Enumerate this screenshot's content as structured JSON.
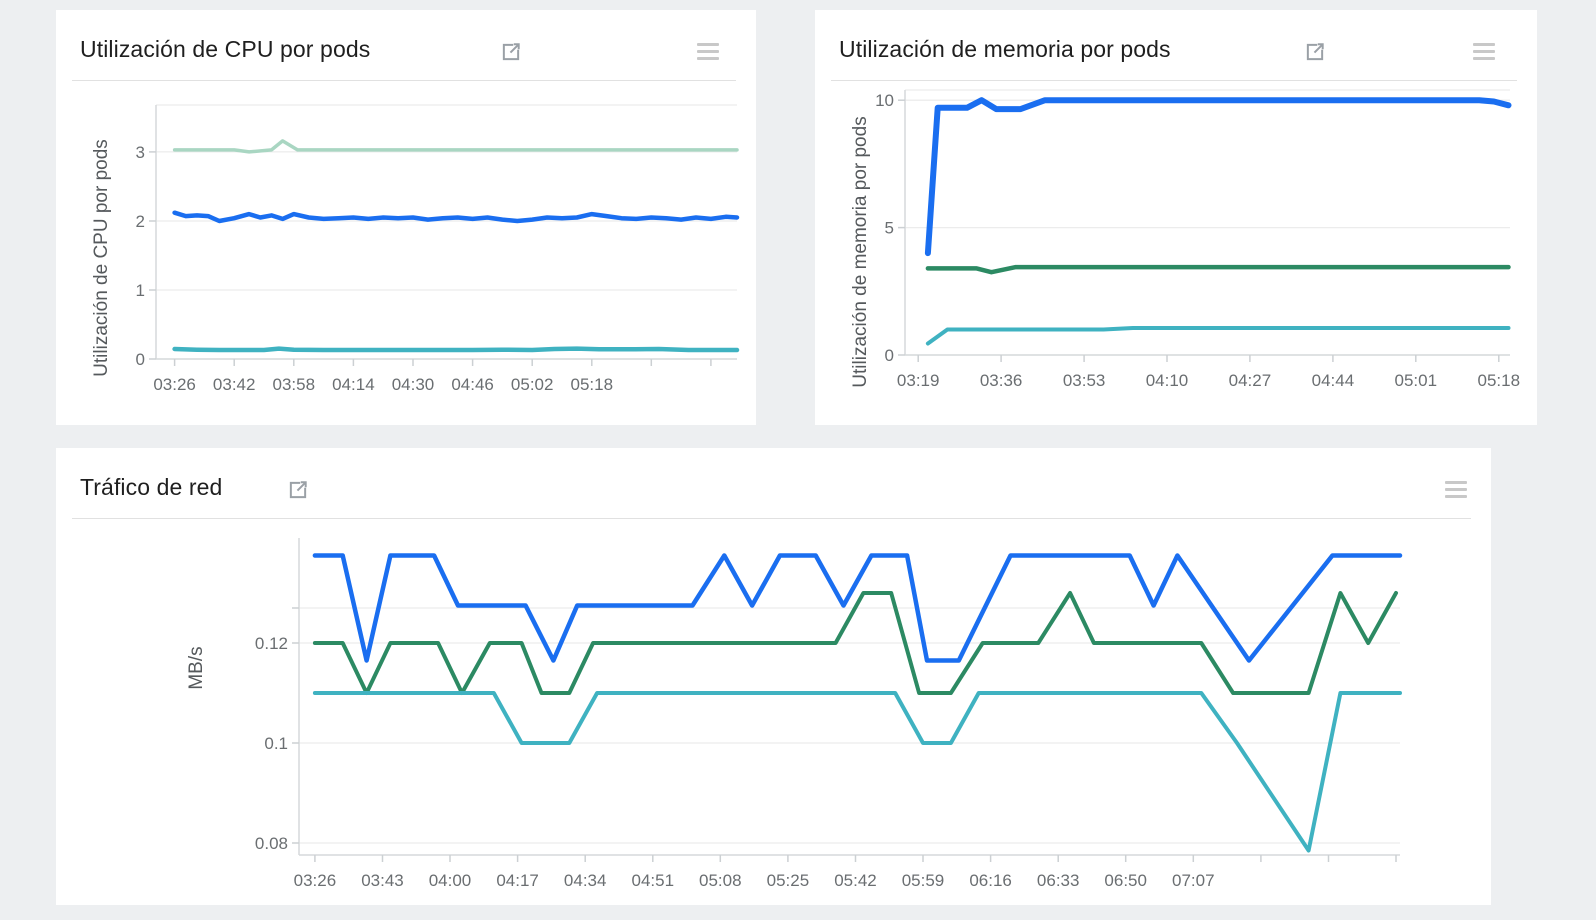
{
  "page": {
    "background_color": "#edeff1",
    "card_color": "#ffffff"
  },
  "icons": {
    "title_action": "open-in-new",
    "card_menu": "menu"
  },
  "colors": {
    "blue": "#1a6ef0",
    "green": "#2c8a63",
    "teal": "#3fb2c1",
    "pale_green": "#a9d6c2",
    "gridline": "#ececec",
    "axis": "#d6d9db",
    "tick": "#ccd0d3"
  },
  "chart_data": [
    {
      "id": "cpu",
      "type": "line",
      "title": "Utilización de CPU por pods",
      "ylabel": "Utilización de CPU por pods",
      "legend": "none",
      "grid": true,
      "x_domain": [
        -5,
        151
      ],
      "y_domain": [
        0,
        3.68
      ],
      "top_gridline": true,
      "y_gridlines_unlabeled": [],
      "x_ticks": [
        {
          "t": 0,
          "label": "03:26"
        },
        {
          "t": 16,
          "label": "03:42"
        },
        {
          "t": 32,
          "label": "03:58"
        },
        {
          "t": 48,
          "label": "04:14"
        },
        {
          "t": 64,
          "label": "04:30"
        },
        {
          "t": 80,
          "label": "04:46"
        },
        {
          "t": 96,
          "label": "05:02"
        },
        {
          "t": 112,
          "label": "05:18"
        }
      ],
      "y_ticks": [
        {
          "v": 0,
          "label": "0"
        },
        {
          "v": 1,
          "label": "1"
        },
        {
          "v": 2,
          "label": "2"
        },
        {
          "v": 3,
          "label": "3"
        }
      ],
      "series": [
        {
          "name": "pale-green-line",
          "color": "#a9d6c2",
          "width": 3.5,
          "points": [
            [
              0,
              3.03
            ],
            [
              16,
              3.03
            ],
            [
              20,
              3.0
            ],
            [
              26,
              3.03
            ],
            [
              29,
              3.16
            ],
            [
              33,
              3.03
            ],
            [
              60,
              3.03
            ],
            [
              100,
              3.03
            ],
            [
              151,
              3.03
            ]
          ]
        },
        {
          "name": "blue-line",
          "color": "#1a6ef0",
          "width": 4.5,
          "points": [
            [
              0,
              2.12
            ],
            [
              3,
              2.07
            ],
            [
              6,
              2.08
            ],
            [
              9,
              2.07
            ],
            [
              12,
              2.0
            ],
            [
              16,
              2.04
            ],
            [
              20,
              2.1
            ],
            [
              23,
              2.05
            ],
            [
              26,
              2.08
            ],
            [
              29,
              2.03
            ],
            [
              32,
              2.1
            ],
            [
              36,
              2.05
            ],
            [
              40,
              2.03
            ],
            [
              44,
              2.04
            ],
            [
              48,
              2.05
            ],
            [
              52,
              2.03
            ],
            [
              56,
              2.05
            ],
            [
              60,
              2.04
            ],
            [
              64,
              2.05
            ],
            [
              68,
              2.02
            ],
            [
              72,
              2.04
            ],
            [
              76,
              2.05
            ],
            [
              80,
              2.03
            ],
            [
              84,
              2.05
            ],
            [
              88,
              2.02
            ],
            [
              92,
              2.0
            ],
            [
              96,
              2.02
            ],
            [
              100,
              2.05
            ],
            [
              104,
              2.04
            ],
            [
              108,
              2.05
            ],
            [
              112,
              2.1
            ],
            [
              116,
              2.07
            ],
            [
              120,
              2.04
            ],
            [
              124,
              2.03
            ],
            [
              128,
              2.05
            ],
            [
              132,
              2.04
            ],
            [
              136,
              2.02
            ],
            [
              140,
              2.05
            ],
            [
              144,
              2.03
            ],
            [
              148,
              2.06
            ],
            [
              151,
              2.05
            ]
          ]
        },
        {
          "name": "teal-line",
          "color": "#3fb2c1",
          "width": 4.5,
          "points": [
            [
              0,
              0.145
            ],
            [
              6,
              0.135
            ],
            [
              12,
              0.13
            ],
            [
              18,
              0.13
            ],
            [
              24,
              0.13
            ],
            [
              28,
              0.15
            ],
            [
              32,
              0.135
            ],
            [
              40,
              0.13
            ],
            [
              48,
              0.13
            ],
            [
              56,
              0.13
            ],
            [
              64,
              0.13
            ],
            [
              72,
              0.13
            ],
            [
              80,
              0.13
            ],
            [
              88,
              0.135
            ],
            [
              96,
              0.13
            ],
            [
              102,
              0.145
            ],
            [
              108,
              0.15
            ],
            [
              114,
              0.14
            ],
            [
              122,
              0.14
            ],
            [
              130,
              0.145
            ],
            [
              138,
              0.13
            ],
            [
              144,
              0.13
            ],
            [
              151,
              0.13
            ]
          ]
        }
      ]
    },
    {
      "id": "mem",
      "type": "line",
      "title": "Utilización de memoria por pods",
      "ylabel": "Utilización de memoria por pods",
      "legend": "none",
      "grid": true,
      "x_domain": [
        -2.7,
        121.3
      ],
      "y_domain": [
        0,
        10.4
      ],
      "top_gridline": true,
      "y_gridlines_unlabeled": [],
      "x_ticks": [
        {
          "t": 0,
          "label": "03:19"
        },
        {
          "t": 17,
          "label": "03:36"
        },
        {
          "t": 34,
          "label": "03:53"
        },
        {
          "t": 51,
          "label": "04:10"
        },
        {
          "t": 68,
          "label": "04:27"
        },
        {
          "t": 85,
          "label": "04:44"
        },
        {
          "t": 102,
          "label": "05:01"
        },
        {
          "t": 119,
          "label": "05:18"
        }
      ],
      "y_ticks": [
        {
          "v": 0,
          "label": "0"
        },
        {
          "v": 5,
          "label": "5"
        },
        {
          "v": 10,
          "label": "10"
        }
      ],
      "series": [
        {
          "name": "blue-line",
          "color": "#1a6ef0",
          "width": 6,
          "points": [
            [
              2,
              4.0
            ],
            [
              4,
              9.7
            ],
            [
              10,
              9.7
            ],
            [
              13,
              10.0
            ],
            [
              16,
              9.65
            ],
            [
              21,
              9.65
            ],
            [
              26,
              10.0
            ],
            [
              60,
              10.0
            ],
            [
              115,
              10.0
            ],
            [
              118,
              9.95
            ],
            [
              121,
              9.8
            ]
          ]
        },
        {
          "name": "green-line",
          "color": "#2c8a63",
          "width": 4.5,
          "points": [
            [
              2,
              3.4
            ],
            [
              12,
              3.4
            ],
            [
              15,
              3.25
            ],
            [
              20,
              3.45
            ],
            [
              60,
              3.45
            ],
            [
              121,
              3.45
            ]
          ]
        },
        {
          "name": "teal-line",
          "color": "#3fb2c1",
          "width": 4,
          "points": [
            [
              2,
              0.45
            ],
            [
              6,
              1.0
            ],
            [
              38,
              1.0
            ],
            [
              44,
              1.06
            ],
            [
              80,
              1.06
            ],
            [
              121,
              1.06
            ]
          ]
        }
      ]
    },
    {
      "id": "net",
      "type": "line",
      "title": "Tráfico de red",
      "ylabel": "MB/s",
      "legend": "none",
      "grid": true,
      "x_domain": [
        -4,
        273
      ],
      "y_domain": [
        0.0776,
        0.141
      ],
      "top_gridline": false,
      "y_gridlines_unlabeled": [
        0.127
      ],
      "x_ticks": [
        {
          "t": 0,
          "label": "03:26"
        },
        {
          "t": 17,
          "label": "03:43"
        },
        {
          "t": 34,
          "label": "04:00"
        },
        {
          "t": 51,
          "label": "04:17"
        },
        {
          "t": 68,
          "label": "04:34"
        },
        {
          "t": 85,
          "label": "04:51"
        },
        {
          "t": 102,
          "label": "05:08"
        },
        {
          "t": 119,
          "label": "05:25"
        },
        {
          "t": 136,
          "label": "05:42"
        },
        {
          "t": 153,
          "label": "05:59"
        },
        {
          "t": 170,
          "label": "06:16"
        },
        {
          "t": 187,
          "label": "06:33"
        },
        {
          "t": 204,
          "label": "06:50"
        },
        {
          "t": 221,
          "label": "07:07"
        }
      ],
      "y_ticks": [
        {
          "v": 0.08,
          "label": "0.08"
        },
        {
          "v": 0.1,
          "label": "0.1"
        },
        {
          "v": 0.12,
          "label": "0.12"
        }
      ],
      "series": [
        {
          "name": "blue-line",
          "color": "#1a6ef0",
          "width": 4.5,
          "points": [
            [
              0,
              0.1375
            ],
            [
              7,
              0.1375
            ],
            [
              13,
              0.1165
            ],
            [
              19,
              0.1375
            ],
            [
              30,
              0.1375
            ],
            [
              36,
              0.1275
            ],
            [
              53,
              0.1275
            ],
            [
              60,
              0.1165
            ],
            [
              66,
              0.1275
            ],
            [
              95,
              0.1275
            ],
            [
              103,
              0.1375
            ],
            [
              110,
              0.1275
            ],
            [
              117,
              0.1375
            ],
            [
              126,
              0.1375
            ],
            [
              133,
              0.1275
            ],
            [
              140,
              0.1375
            ],
            [
              149,
              0.1375
            ],
            [
              154,
              0.1165
            ],
            [
              162,
              0.1165
            ],
            [
              175,
              0.1375
            ],
            [
              205,
              0.1375
            ],
            [
              211,
              0.1275
            ],
            [
              217,
              0.1375
            ],
            [
              235,
              0.1165
            ],
            [
              256,
              0.1375
            ],
            [
              273,
              0.1375
            ]
          ]
        },
        {
          "name": "green-line",
          "color": "#2c8a63",
          "width": 4,
          "points": [
            [
              0,
              0.12
            ],
            [
              7,
              0.12
            ],
            [
              13,
              0.11
            ],
            [
              19,
              0.12
            ],
            [
              31,
              0.12
            ],
            [
              37,
              0.11
            ],
            [
              44,
              0.12
            ],
            [
              52,
              0.12
            ],
            [
              57,
              0.11
            ],
            [
              64,
              0.11
            ],
            [
              70,
              0.12
            ],
            [
              131,
              0.12
            ],
            [
              138,
              0.13
            ],
            [
              145,
              0.13
            ],
            [
              152,
              0.11
            ],
            [
              160,
              0.11
            ],
            [
              168,
              0.12
            ],
            [
              182,
              0.12
            ],
            [
              190,
              0.13
            ],
            [
              196,
              0.12
            ],
            [
              223,
              0.12
            ],
            [
              231,
              0.11
            ],
            [
              250,
              0.11
            ],
            [
              258,
              0.13
            ],
            [
              265,
              0.12
            ],
            [
              272,
              0.13
            ]
          ]
        },
        {
          "name": "teal-line",
          "color": "#3fb2c1",
          "width": 4,
          "points": [
            [
              0,
              0.11
            ],
            [
              45,
              0.11
            ],
            [
              52,
              0.1
            ],
            [
              64,
              0.1
            ],
            [
              71,
              0.11
            ],
            [
              146,
              0.11
            ],
            [
              153,
              0.1
            ],
            [
              160,
              0.1
            ],
            [
              167,
              0.11
            ],
            [
              223,
              0.11
            ],
            [
              232,
              0.1
            ],
            [
              250,
              0.0785
            ],
            [
              258,
              0.11
            ],
            [
              273,
              0.11
            ]
          ]
        }
      ]
    }
  ]
}
